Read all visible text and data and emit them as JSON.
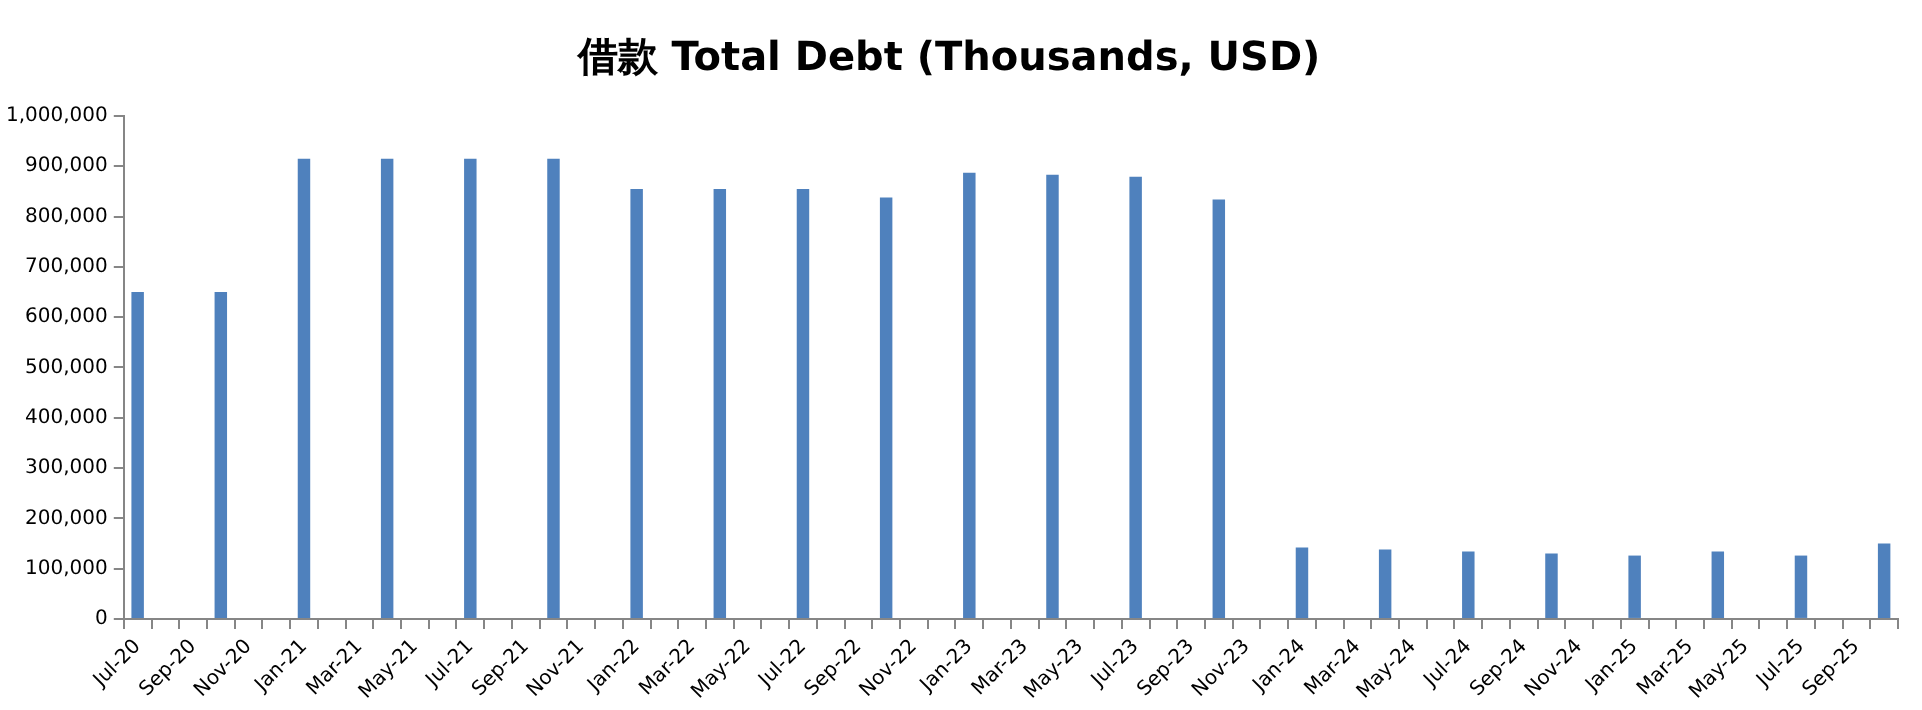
{
  "chart_data": {
    "type": "bar",
    "title": "借款 Total Debt (Thousands, USD)",
    "categories": [
      "Jul-20",
      null,
      "Sep-20",
      null,
      "Nov-20",
      null,
      "Jan-21",
      null,
      "Mar-21",
      null,
      "May-21",
      null,
      "Jul-21",
      null,
      "Sep-21",
      null,
      "Nov-21",
      null,
      "Jan-22",
      null,
      "Mar-22",
      null,
      "May-22",
      null,
      "Jul-22",
      null,
      "Sep-22",
      null,
      "Nov-22",
      null,
      "Jan-23",
      null,
      "Mar-23",
      null,
      "May-23",
      null,
      "Jul-23",
      null,
      "Sep-23",
      null,
      "Nov-23",
      null,
      "Jan-24",
      null,
      "Mar-24",
      null,
      "May-24",
      null,
      "Jul-24",
      null,
      "Sep-24",
      null,
      "Nov-24",
      null,
      "Jan-25",
      null,
      "Mar-25",
      null,
      "May-25",
      null,
      "Jul-25",
      null,
      "Sep-25",
      null
    ],
    "values": [
      650000,
      null,
      null,
      650000,
      null,
      null,
      915000,
      null,
      null,
      915000,
      null,
      null,
      915000,
      null,
      null,
      915000,
      null,
      null,
      855000,
      null,
      null,
      855000,
      null,
      null,
      855000,
      null,
      null,
      838000,
      null,
      null,
      887000,
      null,
      null,
      883000,
      null,
      null,
      879000,
      null,
      null,
      834000,
      null,
      null,
      142000,
      null,
      null,
      138000,
      null,
      null,
      134000,
      null,
      null,
      130000,
      null,
      null,
      126000,
      null,
      null,
      134000,
      null,
      null,
      126000,
      null,
      null,
      150000
    ],
    "color": "#4f81bd",
    "ylim": [
      0,
      1000000
    ],
    "yticks": [
      {
        "value": 0,
        "label": "0"
      },
      {
        "value": 100000,
        "label": "100,000"
      },
      {
        "value": 200000,
        "label": "200,000"
      },
      {
        "value": 300000,
        "label": "300,000"
      },
      {
        "value": 400000,
        "label": "400,000"
      },
      {
        "value": 500000,
        "label": "500,000"
      },
      {
        "value": 600000,
        "label": "600,000"
      },
      {
        "value": 700000,
        "label": "700,000"
      },
      {
        "value": 800000,
        "label": "800,000"
      },
      {
        "value": 900000,
        "label": "900,000"
      },
      {
        "value": 1000000,
        "label": "1,000,000"
      }
    ],
    "grid": false,
    "legend": false
  }
}
